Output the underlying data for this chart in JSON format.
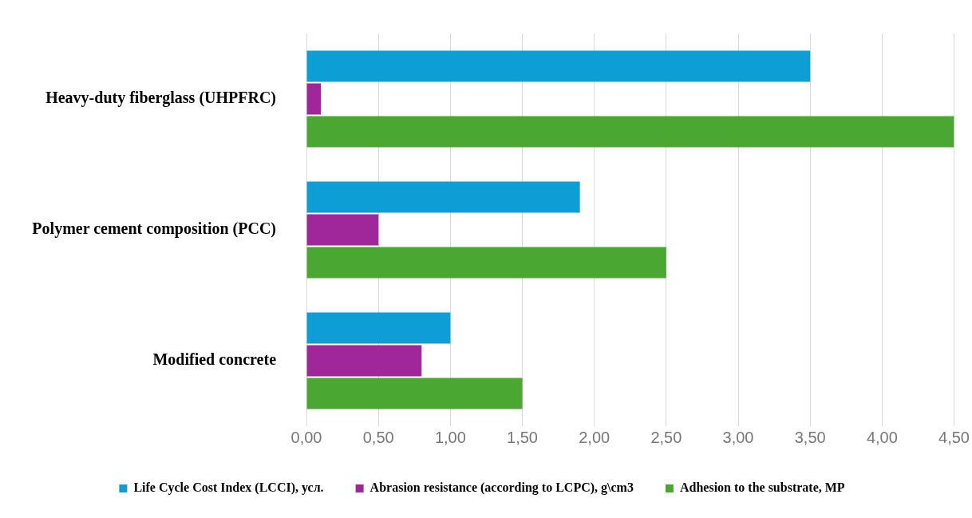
{
  "chart_data": {
    "type": "bar",
    "orientation": "horizontal",
    "categories": [
      "Heavy-duty fiberglass (UHPFRC)",
      "Polymer cement composition (PCC)",
      "Modified concrete"
    ],
    "series": [
      {
        "name": "Life Cycle Cost Index (LCCI), усл.",
        "color": "#0e9ed6",
        "values": [
          3.5,
          1.9,
          1.0
        ]
      },
      {
        "name": "Abrasion resistance (according to LCPC), g\\cm3",
        "color": "#a0279a",
        "values": [
          0.1,
          0.5,
          0.8
        ]
      },
      {
        "name": "Adhesion to the substrate, MP",
        "color": "#4aa832",
        "values": [
          4.5,
          2.5,
          1.5
        ]
      }
    ],
    "xlim": [
      0,
      4.5
    ],
    "xticks": [
      {
        "value": 0,
        "label": "0,00"
      },
      {
        "value": 0.5,
        "label": "0,50"
      },
      {
        "value": 1,
        "label": "1,00"
      },
      {
        "value": 1.5,
        "label": "1,50"
      },
      {
        "value": 2,
        "label": "2,00"
      },
      {
        "value": 2.5,
        "label": "2,50"
      },
      {
        "value": 3,
        "label": "3,00"
      },
      {
        "value": 3.5,
        "label": "3,50"
      },
      {
        "value": 4,
        "label": "4,00"
      },
      {
        "value": 4.5,
        "label": "4,50"
      }
    ],
    "grid": "x",
    "legend": "bottom"
  }
}
